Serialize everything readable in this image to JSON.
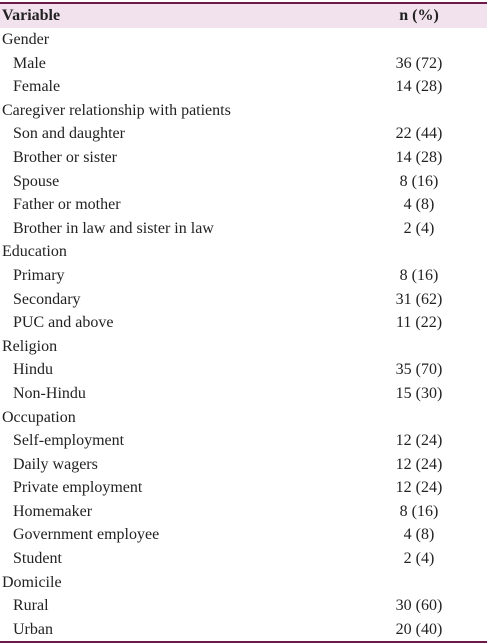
{
  "table": {
    "header": [
      "Variable",
      "n (%)"
    ],
    "groups": [
      {
        "label": "Gender",
        "rows": [
          [
            "Male",
            "36 (72)"
          ],
          [
            "Female",
            "14 (28)"
          ]
        ]
      },
      {
        "label": "Caregiver relationship with patients",
        "rows": [
          [
            "Son and daughter",
            "22 (44)"
          ],
          [
            "Brother or sister",
            "14 (28)"
          ],
          [
            "Spouse",
            "8 (16)"
          ],
          [
            "Father or mother",
            "4 (8)"
          ],
          [
            "Brother in law and sister in law",
            "2 (4)"
          ]
        ]
      },
      {
        "label": "Education",
        "rows": [
          [
            "Primary",
            "8 (16)"
          ],
          [
            "Secondary",
            "31 (62)"
          ],
          [
            "PUC and above",
            "11 (22)"
          ]
        ]
      },
      {
        "label": "Religion",
        "rows": [
          [
            "Hindu",
            "35 (70)"
          ],
          [
            "Non-Hindu",
            "15 (30)"
          ]
        ]
      },
      {
        "label": "Occupation",
        "rows": [
          [
            "Self-employment",
            "12 (24)"
          ],
          [
            "Daily wagers",
            "12 (24)"
          ],
          [
            "Private employment",
            "12 (24)"
          ],
          [
            "Homemaker",
            "8 (16)"
          ],
          [
            "Government employee",
            "4 (8)"
          ],
          [
            "Student",
            "2 (4)"
          ]
        ]
      },
      {
        "label": "Domicile",
        "rows": [
          [
            "Rural",
            "30 (60)"
          ],
          [
            "Urban",
            "20 (40)"
          ]
        ]
      }
    ]
  }
}
